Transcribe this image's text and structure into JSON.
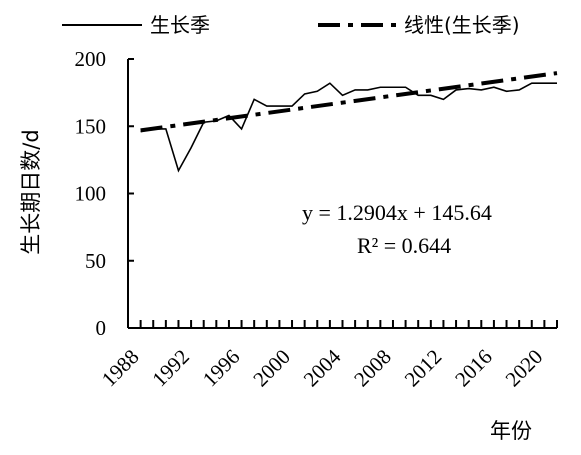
{
  "chart_data": {
    "type": "line",
    "xlabel": "年份",
    "ylabel": "生长期日数/d",
    "xlim": [
      1988,
      2022
    ],
    "ylim": [
      0,
      200
    ],
    "x_ticks": [
      1988,
      1992,
      1996,
      2000,
      2004,
      2008,
      2012,
      2016,
      2020
    ],
    "y_ticks": [
      0,
      50,
      100,
      150,
      200
    ],
    "grid": false,
    "legend_position": "top",
    "series": [
      {
        "name": "生长季",
        "style": "solid",
        "color": "#000000",
        "x": [
          1989,
          1990,
          1991,
          1992,
          1993,
          1994,
          1995,
          1996,
          1997,
          1998,
          1999,
          2000,
          2001,
          2002,
          2003,
          2004,
          2005,
          2006,
          2007,
          2008,
          2009,
          2010,
          2011,
          2012,
          2013,
          2014,
          2015,
          2016,
          2017,
          2018,
          2019,
          2020,
          2021,
          2022
        ],
        "values": [
          146,
          148,
          148,
          117,
          134,
          153,
          154,
          158,
          148,
          170,
          165,
          165,
          165,
          174,
          176,
          182,
          173,
          177,
          177,
          179,
          179,
          179,
          173,
          173,
          170,
          177,
          178,
          177,
          179,
          176,
          177,
          182,
          182,
          182
        ]
      },
      {
        "name": "线性(生长季)",
        "style": "dash-dot",
        "color": "#000000",
        "x": [
          1989,
          2022
        ],
        "values": [
          146.93,
          189.51
        ]
      }
    ],
    "annotations": {
      "equation": "y = 1.2904x + 145.64",
      "r_squared": "R² = 0.644"
    }
  }
}
